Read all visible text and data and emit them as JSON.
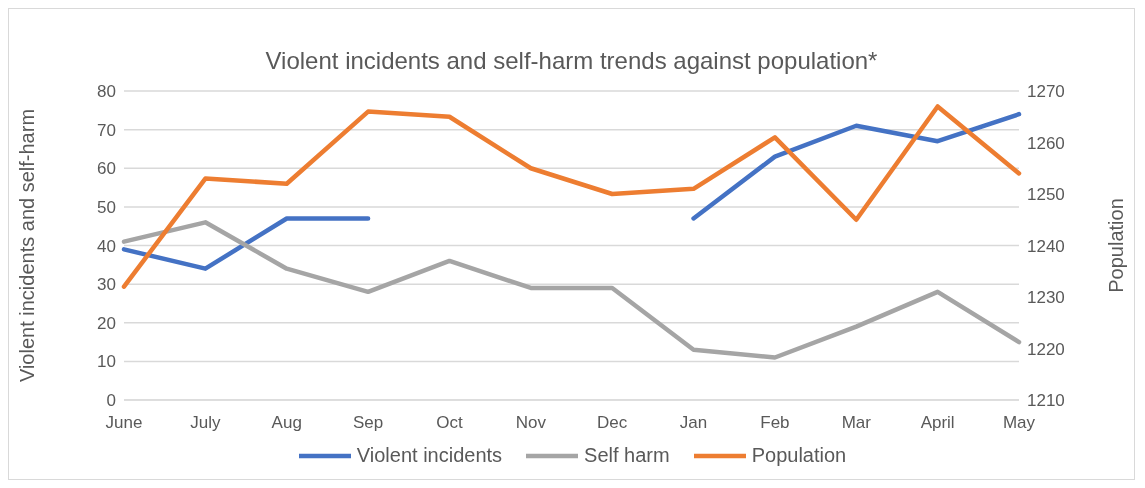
{
  "chart_data": {
    "type": "line",
    "title": "Violent incidents and self-harm trends against population*",
    "ylabel": "Violent incidents and self-harm",
    "y2label": "Population",
    "categories": [
      "June",
      "July",
      "Aug",
      "Sep",
      "Oct",
      "Nov",
      "Dec",
      "Jan",
      "Feb",
      "Mar",
      "April",
      "May"
    ],
    "series": [
      {
        "name": "Violent incidents",
        "color": "#4472c4",
        "values": [
          39,
          34,
          47,
          47,
          null,
          null,
          null,
          47,
          63,
          71,
          67,
          74
        ]
      },
      {
        "name": "Self harm",
        "color": "#a5a5a5",
        "values": [
          41,
          46,
          34,
          28,
          36,
          29,
          29,
          13,
          11,
          19,
          28,
          15
        ]
      },
      {
        "name": "Population",
        "color": "#ed7d31",
        "axis": "y2",
        "values": [
          1232,
          1253,
          1252,
          1266,
          1265,
          1255,
          1250,
          1251,
          1261,
          1245,
          1267,
          1254
        ]
      }
    ],
    "ylim": [
      0,
      80
    ],
    "yticks": [
      0,
      10,
      20,
      30,
      40,
      50,
      60,
      70,
      80
    ],
    "y2lim": [
      1210,
      1270
    ],
    "y2ticks": [
      1210,
      1220,
      1230,
      1240,
      1250,
      1260,
      1270
    ],
    "grid": "y",
    "legend": "bottom",
    "marker": "none",
    "line_style": "solid"
  }
}
